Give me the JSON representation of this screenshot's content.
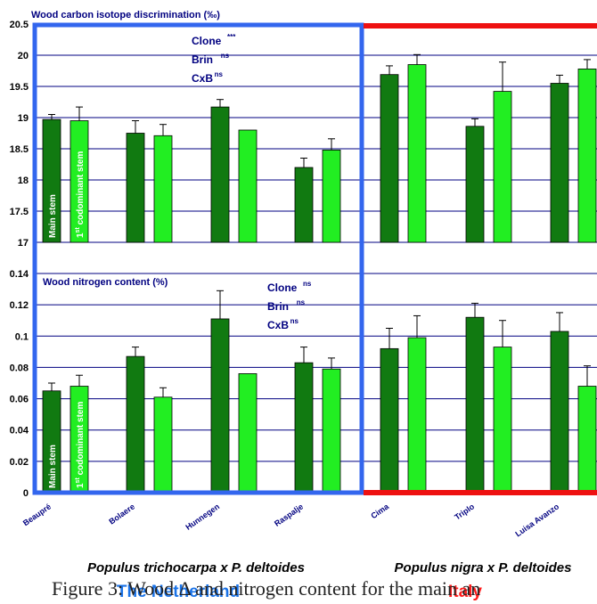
{
  "chart_data": [
    {
      "type": "bar",
      "title": "Wood carbon isotope discrimination (‰)",
      "ylim": [
        17,
        20.5
      ],
      "yticks": [
        "17",
        "17.5",
        "18",
        "18.5",
        "19",
        "19.5",
        "20",
        "20.5"
      ],
      "categories": [
        "Beaupré",
        "Bolaere",
        "Hunnegen",
        "Raspalje",
        "Cima",
        "Triplo",
        "Luisa Avanzo"
      ],
      "series": [
        {
          "name": "Main stem",
          "values": [
            18.97,
            18.75,
            19.17,
            18.2,
            19.69,
            18.86,
            19.55
          ],
          "errors": [
            0.08,
            0.2,
            0.12,
            0.15,
            0.14,
            0.12,
            0.13
          ]
        },
        {
          "name": "1st codominant stem",
          "values": [
            18.95,
            18.71,
            18.8,
            18.48,
            19.85,
            19.42,
            19.78
          ],
          "errors": [
            0.22,
            0.18,
            0.0,
            0.18,
            0.16,
            0.47,
            0.15
          ]
        }
      ],
      "stats": [
        {
          "label": "Clone",
          "sup": "***"
        },
        {
          "label": "Brin",
          "sup": "ns"
        },
        {
          "label": "CxB",
          "sup": "ns"
        }
      ],
      "grid": true
    },
    {
      "type": "bar",
      "title": "Wood nitrogen content (%)",
      "ylim": [
        0,
        0.14
      ],
      "yticks": [
        "0",
        "0.02",
        "0.04",
        "0.06",
        "0.08",
        "0.1",
        "0.12",
        "0.14"
      ],
      "categories": [
        "Beaupré",
        "Bolaere",
        "Hunnegen",
        "Raspalje",
        "Cima",
        "Triplo",
        "Luisa Avanzo"
      ],
      "series": [
        {
          "name": "Main stem",
          "values": [
            0.065,
            0.087,
            0.111,
            0.083,
            0.092,
            0.112,
            0.103
          ],
          "errors": [
            0.005,
            0.006,
            0.018,
            0.01,
            0.013,
            0.009,
            0.012
          ]
        },
        {
          "name": "1st codominant stem",
          "values": [
            0.068,
            0.061,
            0.076,
            0.079,
            0.099,
            0.093,
            0.068
          ],
          "errors": [
            0.007,
            0.006,
            0.0,
            0.007,
            0.014,
            0.017,
            0.013
          ]
        }
      ],
      "stats": [
        {
          "label": "Clone",
          "sup": "ns"
        },
        {
          "label": "Brin",
          "sup": "ns"
        },
        {
          "label": "CxB",
          "sup": "ns"
        }
      ],
      "grid": true
    }
  ],
  "groups": [
    {
      "species": "Populus trichocarpa x P. deltoides",
      "country": "The Netherland",
      "country_color": "#1a73e8",
      "box_color": "#3366ee"
    },
    {
      "species": "Populus nigra x P. deltoides",
      "country": "Italy",
      "country_color": "#ff1a1a",
      "box_color": "#ee1111"
    }
  ],
  "bar_labels": {
    "main": "Main stem",
    "codominant_prefix": "1",
    "codominant_sup": "st",
    "codominant_suffix": " codominant stem"
  },
  "colors": {
    "main_stem": "#117a11",
    "codominant_stem": "#22ee22",
    "grid": "#000080",
    "title": "#000080"
  },
  "caption": "Figure 3: Wood Δ and nitrogen content for the main an"
}
